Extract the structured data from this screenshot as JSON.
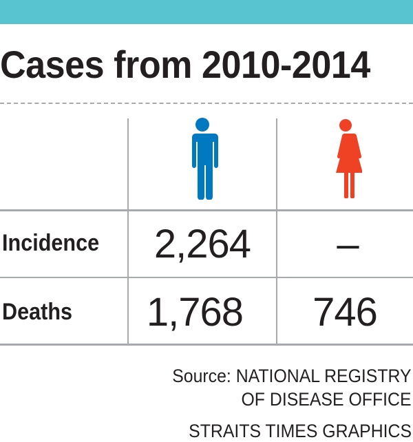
{
  "title": "Cases from 2010-2014",
  "colors": {
    "accent_bar": "#57c4cf",
    "male": "#0079c1",
    "female": "#ef4123",
    "rule": "#a7a9ac"
  },
  "columns": [
    {
      "name": "male",
      "icon": "male-figure-icon"
    },
    {
      "name": "female",
      "icon": "female-figure-icon"
    }
  ],
  "rows": [
    {
      "label": "Incidence",
      "male": "2,264",
      "female": "–"
    },
    {
      "label": "Deaths",
      "male": "1,768",
      "female": "746"
    }
  ],
  "source": {
    "line1": "Source: NATIONAL REGISTRY",
    "line2": "OF DISEASE OFFICE",
    "credit": "STRAITS TIMES GRAPHICS"
  },
  "chart_data": {
    "type": "table",
    "title": "Cases from 2010-2014",
    "columns": [
      "Male",
      "Female"
    ],
    "rows": [
      "Incidence",
      "Deaths"
    ],
    "values": [
      [
        2264,
        null
      ],
      [
        1768,
        746
      ]
    ],
    "source": "NATIONAL REGISTRY OF DISEASE OFFICE"
  }
}
